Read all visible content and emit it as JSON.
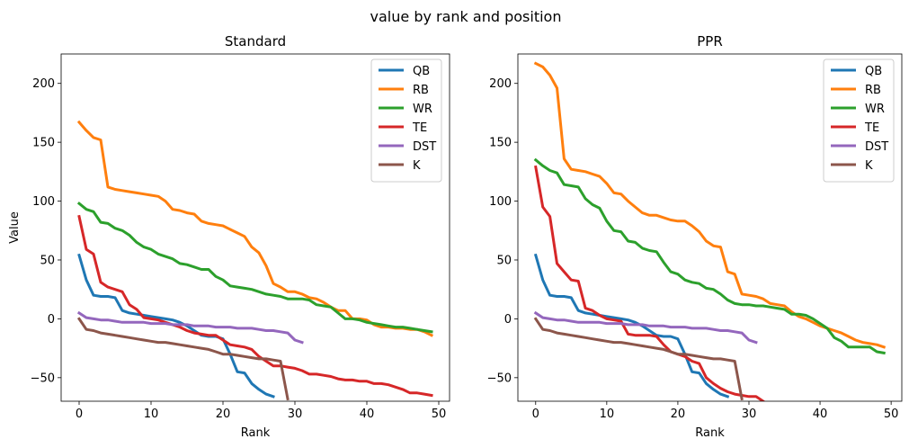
{
  "figure": {
    "suptitle": "value by rank and position"
  },
  "chart_data": [
    {
      "type": "line",
      "title": "Standard",
      "xlabel": "Rank",
      "ylabel": "Value",
      "xlim": [
        -2.5,
        51.5
      ],
      "ylim": [
        -70,
        225
      ],
      "xticks": [
        0,
        10,
        20,
        30,
        40,
        50
      ],
      "yticks": [
        -50,
        0,
        50,
        100,
        150,
        200
      ],
      "grid": false,
      "legend_position": "upper right",
      "series": [
        {
          "name": "QB",
          "color": "#1f77b4",
          "values": [
            54,
            33,
            20,
            19,
            19,
            18,
            7,
            5,
            4,
            3,
            2,
            1,
            0,
            -1,
            -3,
            -6,
            -10,
            -14,
            -15,
            -15,
            -17,
            -30,
            -45,
            -46,
            -55,
            -60,
            -64,
            -66
          ]
        },
        {
          "name": "RB",
          "color": "#ff7f0e",
          "values": [
            167,
            160,
            154,
            152,
            112,
            110,
            109,
            108,
            107,
            106,
            105,
            104,
            100,
            93,
            92,
            90,
            89,
            83,
            81,
            80,
            79,
            76,
            73,
            70,
            61,
            56,
            45,
            30,
            27,
            23,
            23,
            21,
            18,
            17,
            14,
            10,
            7,
            7,
            0,
            0,
            -1,
            -5,
            -7,
            -7,
            -8,
            -8,
            -9,
            -9,
            -11,
            -14
          ]
        },
        {
          "name": "WR",
          "color": "#2ca02c",
          "values": [
            98,
            93,
            91,
            82,
            81,
            77,
            75,
            71,
            65,
            61,
            59,
            55,
            53,
            51,
            47,
            46,
            44,
            42,
            42,
            36,
            33,
            28,
            27,
            26,
            25,
            23,
            21,
            20,
            19,
            17,
            17,
            17,
            16,
            12,
            11,
            10,
            5,
            0,
            0,
            -1,
            -3,
            -4,
            -5,
            -6,
            -7,
            -7,
            -8,
            -9,
            -10,
            -11
          ]
        },
        {
          "name": "TE",
          "color": "#d62728",
          "values": [
            87,
            59,
            55,
            31,
            27,
            25,
            23,
            12,
            8,
            1,
            0,
            -1,
            -3,
            -5,
            -7,
            -10,
            -12,
            -13,
            -14,
            -14,
            -18,
            -22,
            -23,
            -24,
            -26,
            -32,
            -36,
            -40,
            -40,
            -41,
            -42,
            -44,
            -47,
            -47,
            -48,
            -49,
            -51,
            -52,
            -52,
            -53,
            -53,
            -55,
            -55,
            -56,
            -58,
            -60,
            -63,
            -63,
            -64,
            -65
          ]
        },
        {
          "name": "DST",
          "color": "#9467bd",
          "values": [
            5,
            1,
            0,
            -1,
            -1,
            -2,
            -3,
            -3,
            -3,
            -3,
            -4,
            -4,
            -4,
            -5,
            -5,
            -5,
            -6,
            -6,
            -6,
            -7,
            -7,
            -7,
            -8,
            -8,
            -8,
            -9,
            -10,
            -10,
            -11,
            -12,
            -18,
            -20
          ]
        },
        {
          "name": "K",
          "color": "#8c564b",
          "values": [
            0,
            -9,
            -10,
            -12,
            -13,
            -14,
            -15,
            -16,
            -17,
            -18,
            -19,
            -20,
            -20,
            -21,
            -22,
            -23,
            -24,
            -25,
            -26,
            -28,
            -30,
            -30,
            -31,
            -32,
            -33,
            -34,
            -34,
            -35,
            -36,
            -68
          ]
        }
      ]
    },
    {
      "type": "line",
      "title": "PPR",
      "xlabel": "Rank",
      "ylabel": "",
      "xlim": [
        -2.5,
        51.5
      ],
      "ylim": [
        -70,
        225
      ],
      "xticks": [
        0,
        10,
        20,
        30,
        40,
        50
      ],
      "yticks": [
        -50,
        0,
        50,
        100,
        150,
        200
      ],
      "grid": false,
      "legend_position": "upper right",
      "series": [
        {
          "name": "QB",
          "color": "#1f77b4",
          "values": [
            54,
            33,
            20,
            19,
            19,
            18,
            7,
            5,
            4,
            3,
            2,
            1,
            0,
            -1,
            -3,
            -6,
            -10,
            -14,
            -15,
            -15,
            -17,
            -30,
            -45,
            -46,
            -55,
            -60,
            -64,
            -66
          ]
        },
        {
          "name": "RB",
          "color": "#ff7f0e",
          "values": [
            217,
            214,
            207,
            196,
            136,
            127,
            126,
            125,
            123,
            121,
            115,
            107,
            106,
            100,
            95,
            90,
            88,
            88,
            86,
            84,
            83,
            83,
            79,
            74,
            66,
            62,
            61,
            40,
            38,
            21,
            20,
            19,
            17,
            13,
            12,
            11,
            6,
            2,
            0,
            -3,
            -6,
            -8,
            -10,
            -12,
            -15,
            -18,
            -20,
            -21,
            -22,
            -24
          ]
        },
        {
          "name": "WR",
          "color": "#2ca02c",
          "values": [
            135,
            130,
            126,
            124,
            114,
            113,
            112,
            102,
            97,
            94,
            83,
            75,
            74,
            66,
            65,
            60,
            58,
            57,
            48,
            40,
            38,
            33,
            31,
            30,
            26,
            25,
            21,
            16,
            13,
            12,
            12,
            11,
            11,
            10,
            9,
            8,
            4,
            4,
            3,
            0,
            -4,
            -8,
            -16,
            -19,
            -24,
            -24,
            -24,
            -24,
            -28,
            -29
          ]
        },
        {
          "name": "TE",
          "color": "#d62728",
          "values": [
            129,
            95,
            87,
            47,
            40,
            33,
            32,
            9,
            7,
            3,
            0,
            -1,
            -2,
            -13,
            -14,
            -14,
            -14,
            -15,
            -22,
            -28,
            -30,
            -32,
            -36,
            -38,
            -50,
            -55,
            -59,
            -62,
            -64,
            -65,
            -66,
            -66,
            -70
          ]
        },
        {
          "name": "DST",
          "color": "#9467bd",
          "values": [
            5,
            1,
            0,
            -1,
            -1,
            -2,
            -3,
            -3,
            -3,
            -3,
            -4,
            -4,
            -4,
            -5,
            -5,
            -5,
            -6,
            -6,
            -6,
            -7,
            -7,
            -7,
            -8,
            -8,
            -8,
            -9,
            -10,
            -10,
            -11,
            -12,
            -18,
            -20
          ]
        },
        {
          "name": "K",
          "color": "#8c564b",
          "values": [
            0,
            -9,
            -10,
            -12,
            -13,
            -14,
            -15,
            -16,
            -17,
            -18,
            -19,
            -20,
            -20,
            -21,
            -22,
            -23,
            -24,
            -25,
            -26,
            -28,
            -30,
            -30,
            -31,
            -32,
            -33,
            -34,
            -34,
            -35,
            -36,
            -68
          ]
        }
      ]
    }
  ]
}
